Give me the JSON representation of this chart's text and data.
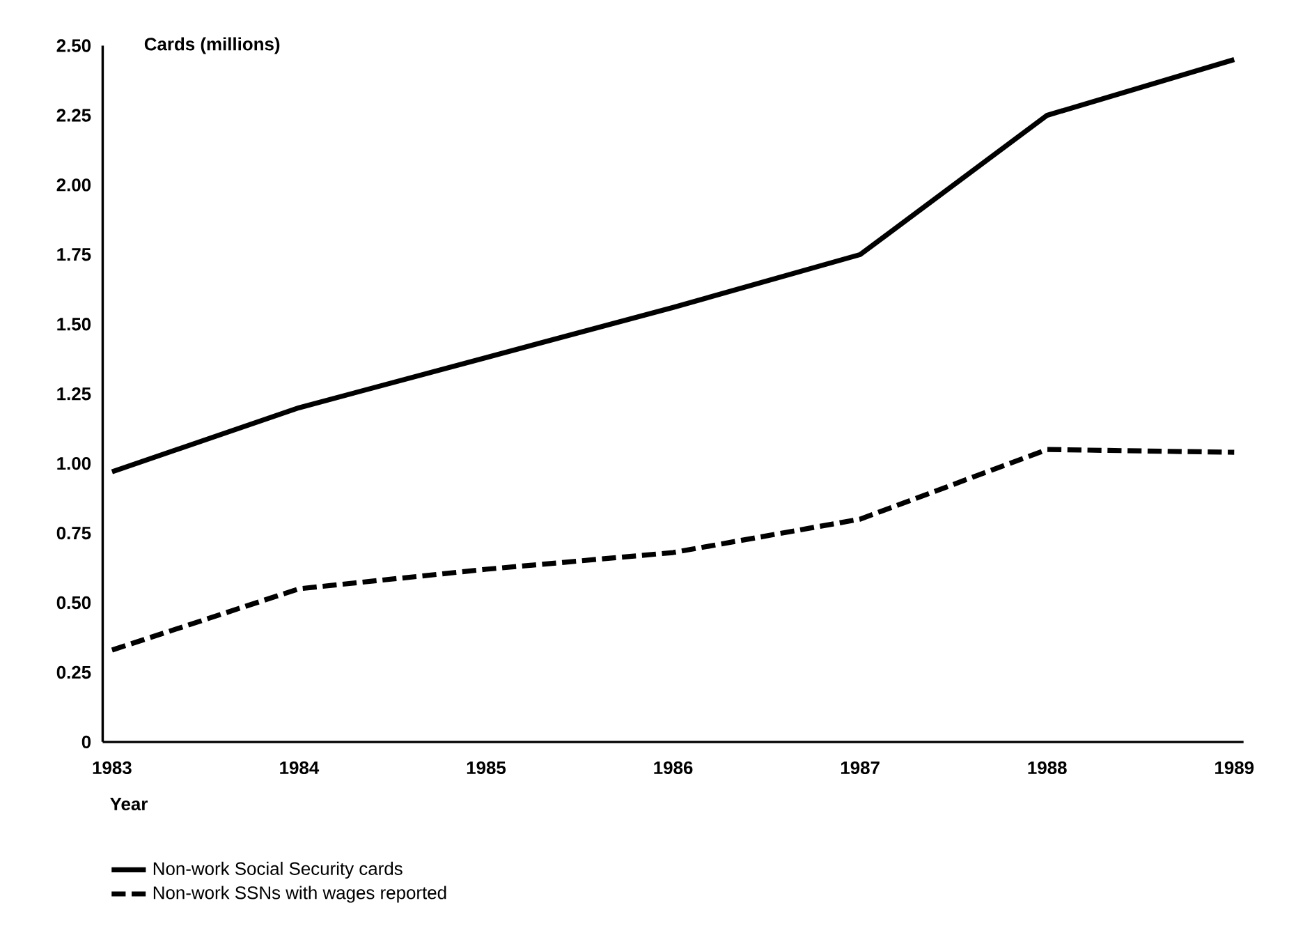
{
  "chart_data": {
    "type": "line",
    "ylabel": "Cards (millions)",
    "xlabel": "Year",
    "categories": [
      "1983",
      "1984",
      "1985",
      "1986",
      "1987",
      "1988",
      "1989"
    ],
    "series": [
      {
        "name": "Non-work Social Security cards",
        "color": "#000000",
        "line_style": "solid",
        "values": [
          0.97,
          1.2,
          1.38,
          1.56,
          1.75,
          2.25,
          2.45
        ]
      },
      {
        "name": "Non-work SSNs with wages reported",
        "color": "#000000",
        "line_style": "dashed",
        "values": [
          0.33,
          0.55,
          0.62,
          0.68,
          0.8,
          1.05,
          1.04
        ]
      }
    ],
    "ylim": [
      0,
      2.5
    ],
    "yticks": [
      0,
      0.25,
      {
        "value": 0.5,
        "label": "0.50"
      },
      0.75,
      {
        "value": 1.0,
        "label": "1.00"
      },
      1.25,
      {
        "value": 1.5,
        "label": "1.50"
      },
      1.75,
      {
        "value": 2.0,
        "label": "2.00"
      },
      2.25,
      {
        "value": 2.5,
        "label": "2.50"
      }
    ],
    "grid": false,
    "legend": "bottom left",
    "marker": "none"
  }
}
